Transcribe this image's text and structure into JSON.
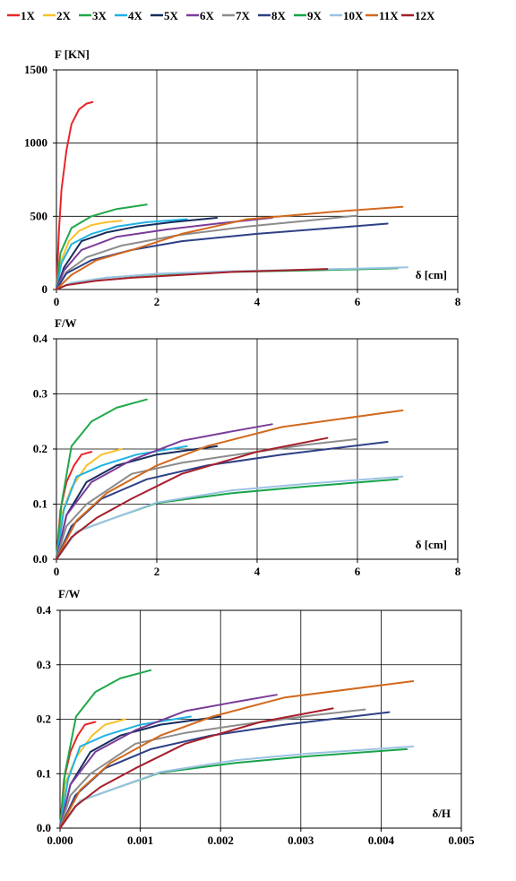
{
  "series_meta": [
    {
      "name": "1X",
      "color": "#e8262a"
    },
    {
      "name": "2X",
      "color": "#f9c02b"
    },
    {
      "name": "3X",
      "color": "#20a84a"
    },
    {
      "name": "4X",
      "color": "#1fb3e4"
    },
    {
      "name": "5X",
      "color": "#152d5c"
    },
    {
      "name": "6X",
      "color": "#7a3d9a"
    },
    {
      "name": "7X",
      "color": "#8c8c8c"
    },
    {
      "name": "8X",
      "color": "#2e3f85"
    },
    {
      "name": "9X",
      "color": "#17a44a"
    },
    {
      "name": "10X",
      "color": "#9cc2e3"
    },
    {
      "name": "11X",
      "color": "#d2691e"
    },
    {
      "name": "12X",
      "color": "#a51f2b"
    }
  ],
  "chart_data": [
    {
      "type": "line",
      "title": "",
      "xlabel": "δ [cm]",
      "ylabel": "F [KN]",
      "xlim": [
        0,
        8
      ],
      "ylim": [
        0,
        1500
      ],
      "xticks": [
        "0",
        "2",
        "4",
        "6",
        "8"
      ],
      "yticks": [
        "0",
        "500",
        "1000",
        "1500"
      ],
      "grid": true,
      "series": [
        {
          "name": "1X",
          "x": [
            0,
            0.05,
            0.1,
            0.2,
            0.3,
            0.45,
            0.6,
            0.72
          ],
          "y": [
            0,
            400,
            680,
            950,
            1130,
            1230,
            1270,
            1280
          ]
        },
        {
          "name": "2X",
          "x": [
            0,
            0.1,
            0.25,
            0.45,
            0.7,
            1.0,
            1.3
          ],
          "y": [
            0,
            200,
            330,
            400,
            440,
            460,
            470
          ]
        },
        {
          "name": "3X",
          "x": [
            0,
            0.08,
            0.3,
            0.7,
            1.2,
            1.8
          ],
          "y": [
            0,
            250,
            420,
            500,
            550,
            580
          ]
        },
        {
          "name": "4X",
          "x": [
            0,
            0.1,
            0.3,
            0.7,
            1.2,
            1.8,
            2.6
          ],
          "y": [
            0,
            180,
            310,
            380,
            430,
            460,
            480
          ]
        },
        {
          "name": "5X",
          "x": [
            0,
            0.15,
            0.5,
            1.0,
            1.6,
            2.3,
            3.2
          ],
          "y": [
            0,
            150,
            330,
            390,
            430,
            460,
            490
          ]
        },
        {
          "name": "6X",
          "x": [
            0,
            0.15,
            0.5,
            1.2,
            2.2,
            3.2,
            4.3
          ],
          "y": [
            0,
            130,
            270,
            360,
            410,
            450,
            490
          ]
        },
        {
          "name": "7X",
          "x": [
            0,
            0.2,
            0.6,
            1.3,
            2.4,
            3.8,
            5.0,
            6.0
          ],
          "y": [
            0,
            120,
            220,
            300,
            370,
            430,
            470,
            505
          ]
        },
        {
          "name": "8X",
          "x": [
            0,
            0.2,
            0.7,
            1.5,
            2.5,
            4.0,
            5.5,
            6.6
          ],
          "y": [
            0,
            110,
            200,
            270,
            330,
            380,
            420,
            450
          ]
        },
        {
          "name": "9X",
          "x": [
            0,
            0.3,
            1.0,
            2.0,
            3.5,
            5.0,
            6.0,
            6.8
          ],
          "y": [
            0,
            45,
            80,
            105,
            120,
            130,
            138,
            145
          ]
        },
        {
          "name": "10X",
          "x": [
            0,
            0.3,
            1.0,
            2.0,
            3.5,
            5.0,
            6.3,
            7.0
          ],
          "y": [
            0,
            45,
            80,
            108,
            125,
            135,
            145,
            152
          ]
        },
        {
          "name": "11X",
          "x": [
            0,
            0.3,
            0.8,
            1.6,
            2.5,
            3.8,
            5.5,
            6.9
          ],
          "y": [
            0,
            100,
            200,
            280,
            380,
            480,
            530,
            565
          ]
        },
        {
          "name": "12X",
          "x": [
            0,
            0.2,
            0.8,
            1.5,
            2.5,
            3.5,
            4.5,
            5.4
          ],
          "y": [
            0,
            30,
            60,
            80,
            100,
            120,
            130,
            140
          ]
        }
      ]
    },
    {
      "type": "line",
      "title": "",
      "xlabel": "δ [cm]",
      "ylabel": "F/W",
      "xlim": [
        0,
        8
      ],
      "ylim": [
        0,
        0.4
      ],
      "xticks": [
        "0",
        "2",
        "4",
        "6",
        "8"
      ],
      "yticks": [
        "0.0",
        "0.1",
        "0.2",
        "0.3",
        "0.4"
      ],
      "grid": true,
      "series": [
        {
          "name": "1X",
          "x": [
            0,
            0.08,
            0.2,
            0.35,
            0.5,
            0.7
          ],
          "y": [
            0,
            0.09,
            0.14,
            0.17,
            0.19,
            0.195
          ]
        },
        {
          "name": "2X",
          "x": [
            0,
            0.1,
            0.3,
            0.6,
            0.9,
            1.3
          ],
          "y": [
            0,
            0.08,
            0.13,
            0.17,
            0.19,
            0.2
          ]
        },
        {
          "name": "3X",
          "x": [
            0,
            0.1,
            0.3,
            0.7,
            1.2,
            1.8
          ],
          "y": [
            0,
            0.1,
            0.205,
            0.25,
            0.275,
            0.29
          ]
        },
        {
          "name": "4X",
          "x": [
            0,
            0.15,
            0.4,
            0.9,
            1.6,
            2.6
          ],
          "y": [
            0,
            0.09,
            0.15,
            0.17,
            0.19,
            0.205
          ]
        },
        {
          "name": "5X",
          "x": [
            0,
            0.2,
            0.6,
            1.2,
            2.0,
            3.2
          ],
          "y": [
            0,
            0.08,
            0.14,
            0.17,
            0.19,
            0.205
          ]
        },
        {
          "name": "6X",
          "x": [
            0,
            0.2,
            0.7,
            1.5,
            2.5,
            3.5,
            4.3
          ],
          "y": [
            0,
            0.08,
            0.14,
            0.18,
            0.215,
            0.232,
            0.245
          ]
        },
        {
          "name": "7X",
          "x": [
            0,
            0.2,
            0.6,
            1.5,
            2.5,
            3.6,
            5.0,
            6.0
          ],
          "y": [
            0,
            0.06,
            0.1,
            0.155,
            0.175,
            0.19,
            0.208,
            0.218
          ]
        },
        {
          "name": "8X",
          "x": [
            0,
            0.3,
            0.9,
            1.8,
            3.0,
            4.5,
            6.6
          ],
          "y": [
            0,
            0.06,
            0.11,
            0.145,
            0.17,
            0.19,
            0.213
          ]
        },
        {
          "name": "9X",
          "x": [
            0,
            0.4,
            1.0,
            2.0,
            3.5,
            5.0,
            6.8
          ],
          "y": [
            0,
            0.05,
            0.07,
            0.102,
            0.12,
            0.132,
            0.145
          ]
        },
        {
          "name": "10X",
          "x": [
            0,
            0.4,
            1.0,
            2.0,
            3.5,
            5.0,
            6.9
          ],
          "y": [
            0,
            0.05,
            0.07,
            0.103,
            0.125,
            0.137,
            0.15
          ]
        },
        {
          "name": "11X",
          "x": [
            0,
            0.4,
            1.0,
            2.0,
            3.0,
            4.5,
            6.9
          ],
          "y": [
            0,
            0.07,
            0.12,
            0.17,
            0.205,
            0.24,
            0.27
          ]
        },
        {
          "name": "12X",
          "x": [
            0,
            0.3,
            0.8,
            1.5,
            2.5,
            4.0,
            5.4
          ],
          "y": [
            0,
            0.04,
            0.075,
            0.11,
            0.155,
            0.195,
            0.22
          ]
        }
      ]
    },
    {
      "type": "line",
      "title": "",
      "xlabel": "δ/H",
      "ylabel": "F/W",
      "xlim": [
        0,
        0.005
      ],
      "ylim": [
        0,
        0.4
      ],
      "xticks": [
        "0.000",
        "0.001",
        "0.002",
        "0.003",
        "0.004",
        "0.005"
      ],
      "yticks": [
        "0.0",
        "0.1",
        "0.2",
        "0.3",
        "0.4"
      ],
      "grid": true,
      "series": [
        {
          "name": "1X",
          "x": [
            0,
            5e-05,
            0.00013,
            0.00022,
            0.00031,
            0.00044
          ],
          "y": [
            0,
            0.09,
            0.14,
            0.17,
            0.19,
            0.195
          ]
        },
        {
          "name": "2X",
          "x": [
            0,
            6e-05,
            0.0002,
            0.0004,
            0.00056,
            0.00081
          ],
          "y": [
            0,
            0.08,
            0.13,
            0.17,
            0.19,
            0.2
          ]
        },
        {
          "name": "3X",
          "x": [
            0,
            6e-05,
            0.0002,
            0.00044,
            0.00075,
            0.00113
          ],
          "y": [
            0,
            0.1,
            0.205,
            0.25,
            0.275,
            0.29
          ]
        },
        {
          "name": "4X",
          "x": [
            0,
            0.0001,
            0.00025,
            0.00056,
            0.001,
            0.00163
          ],
          "y": [
            0,
            0.09,
            0.15,
            0.17,
            0.19,
            0.205
          ]
        },
        {
          "name": "5X",
          "x": [
            0,
            0.00013,
            0.00038,
            0.00075,
            0.00125,
            0.002
          ],
          "y": [
            0,
            0.08,
            0.14,
            0.17,
            0.19,
            0.205
          ]
        },
        {
          "name": "6X",
          "x": [
            0,
            0.00013,
            0.00044,
            0.00094,
            0.00156,
            0.00219,
            0.0027
          ],
          "y": [
            0,
            0.08,
            0.14,
            0.18,
            0.215,
            0.232,
            0.245
          ]
        },
        {
          "name": "7X",
          "x": [
            0,
            0.00013,
            0.00038,
            0.00094,
            0.00156,
            0.00225,
            0.0032,
            0.0038
          ],
          "y": [
            0,
            0.06,
            0.1,
            0.155,
            0.175,
            0.19,
            0.208,
            0.218
          ]
        },
        {
          "name": "8X",
          "x": [
            0,
            0.00019,
            0.00056,
            0.00113,
            0.00188,
            0.0028,
            0.0041
          ],
          "y": [
            0,
            0.06,
            0.11,
            0.145,
            0.17,
            0.19,
            0.213
          ]
        },
        {
          "name": "9X",
          "x": [
            0,
            0.00025,
            0.00063,
            0.00125,
            0.0022,
            0.0031,
            0.00432
          ],
          "y": [
            0,
            0.05,
            0.07,
            0.102,
            0.12,
            0.132,
            0.145
          ]
        },
        {
          "name": "10X",
          "x": [
            0,
            0.00025,
            0.00063,
            0.00125,
            0.0022,
            0.0031,
            0.0044
          ],
          "y": [
            0,
            0.05,
            0.07,
            0.103,
            0.125,
            0.137,
            0.15
          ]
        },
        {
          "name": "11X",
          "x": [
            0,
            0.00025,
            0.00063,
            0.00125,
            0.0019,
            0.0028,
            0.0044
          ],
          "y": [
            0,
            0.07,
            0.12,
            0.17,
            0.205,
            0.24,
            0.27
          ]
        },
        {
          "name": "12X",
          "x": [
            0,
            0.00019,
            0.0005,
            0.00094,
            0.00156,
            0.0025,
            0.0034
          ],
          "y": [
            0,
            0.04,
            0.075,
            0.11,
            0.155,
            0.195,
            0.22
          ]
        }
      ]
    }
  ]
}
